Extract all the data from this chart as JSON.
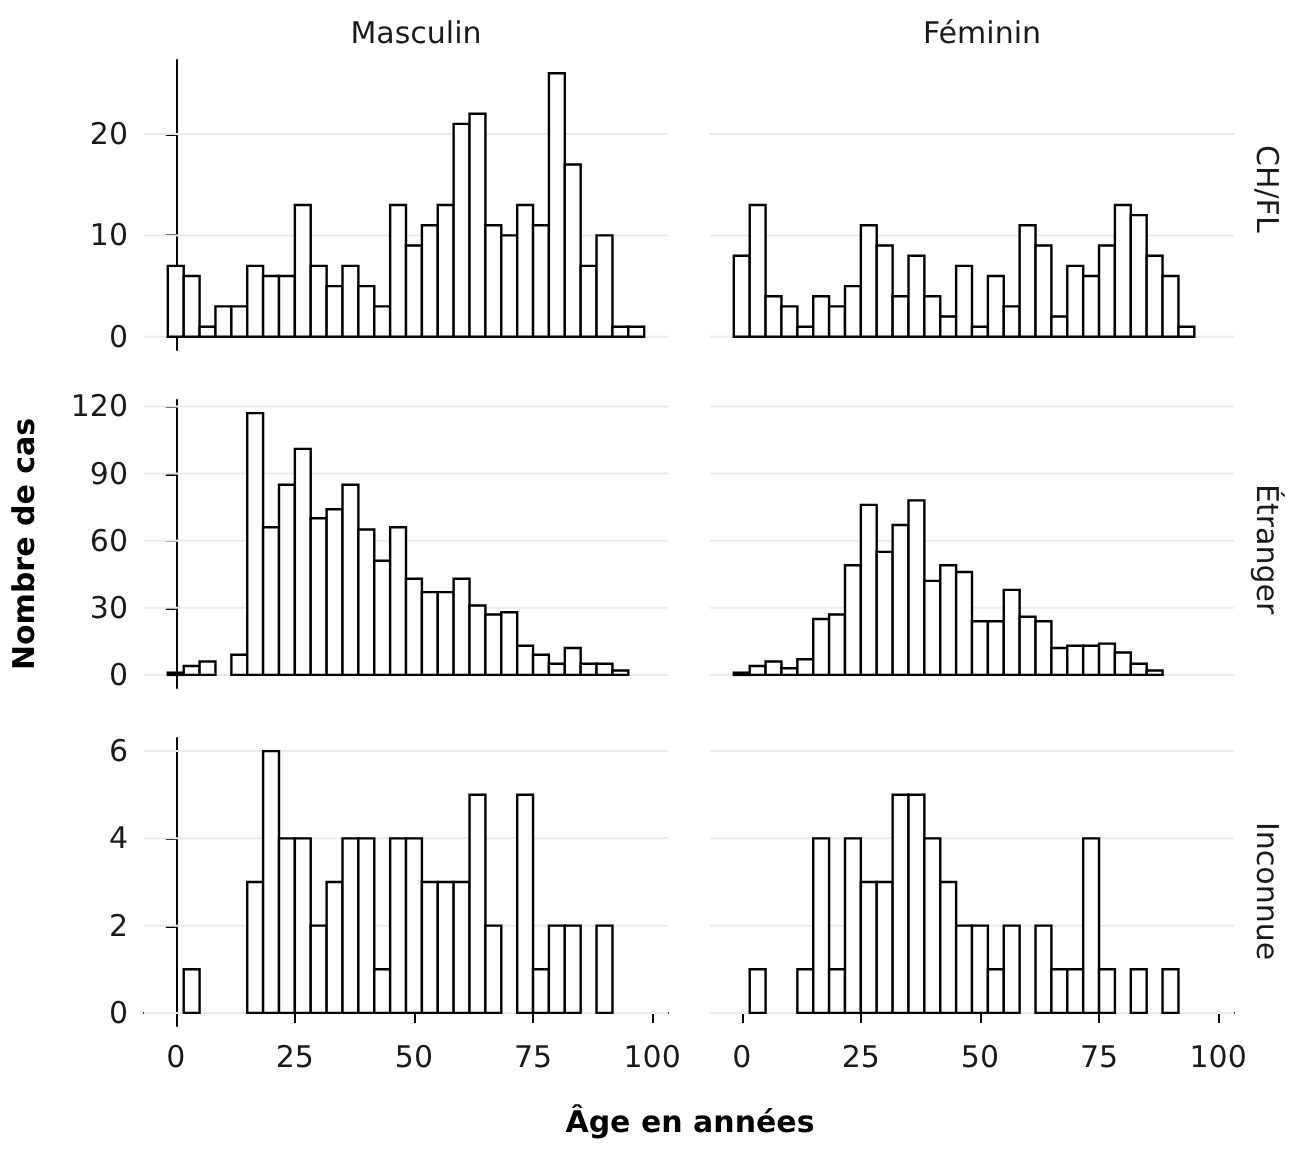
{
  "chart_data": [
    {
      "type": "histogram",
      "title": "Masculin",
      "bins": [
        -1.67,
        1.67,
        5,
        8.33,
        11.67,
        15,
        18.33,
        21.67,
        25,
        28.33,
        31.67,
        35,
        38.33,
        41.67,
        45,
        48.33,
        51.67,
        55,
        58.33,
        61.67,
        65,
        68.33,
        71.67,
        75,
        78.33,
        81.67,
        85,
        88.33,
        91.67,
        95,
        98.33
      ],
      "values": [
        7,
        6,
        1,
        3,
        3,
        7,
        6,
        6,
        13,
        7,
        5,
        7,
        5,
        3,
        13,
        9,
        11,
        13,
        21,
        22,
        11,
        10,
        13,
        11,
        26,
        17,
        7,
        10,
        1,
        1
      ],
      "color": "#ffffff",
      "xlim": [
        -6.67,
        103.33
      ],
      "xticks": [
        0,
        25,
        50,
        75,
        100
      ],
      "ylim": [
        -1.3,
        27.3
      ],
      "yticks": [
        0,
        10,
        20
      ],
      "grid": "y",
      "tick_labels": "y"
    },
    {
      "type": "histogram",
      "title": "Féminin",
      "annotations": [
        "CH/FL"
      ],
      "bins": [
        -1.67,
        1.67,
        5,
        8.33,
        11.67,
        15,
        18.33,
        21.67,
        25,
        28.33,
        31.67,
        35,
        38.33,
        41.67,
        45,
        48.33,
        51.67,
        55,
        58.33,
        61.67,
        65,
        68.33,
        71.67,
        75,
        78.33,
        81.67,
        85,
        88.33,
        91.67,
        95,
        98.33
      ],
      "values": [
        8,
        13,
        4,
        3,
        1,
        4,
        3,
        5,
        11,
        9,
        4,
        8,
        4,
        2,
        7,
        1,
        6,
        3,
        11,
        9,
        2,
        7,
        6,
        9,
        13,
        12,
        8,
        6,
        1,
        0
      ],
      "color": "#ffffff",
      "xlim": [
        -6.67,
        103.33
      ],
      "xticks": [
        0,
        25,
        50,
        75,
        100
      ],
      "yticks": [
        0,
        10,
        20
      ],
      "grid": "y",
      "tick_labels": false
    },
    {
      "type": "histogram",
      "ylabel": "Nombre de cas",
      "bins": [
        -1.67,
        1.67,
        5,
        8.33,
        11.67,
        15,
        18.33,
        21.67,
        25,
        28.33,
        31.67,
        35,
        38.33,
        41.67,
        45,
        48.33,
        51.67,
        55,
        58.33,
        61.67,
        65,
        68.33,
        71.67,
        75,
        78.33,
        81.67,
        85,
        88.33,
        91.67,
        95,
        98.33
      ],
      "values": [
        1,
        4,
        6,
        0,
        9,
        117,
        66,
        85,
        101,
        70,
        74,
        85,
        65,
        51,
        66,
        43,
        37,
        37,
        43,
        31,
        27,
        28,
        13,
        9,
        5,
        12,
        5,
        5,
        2,
        0
      ],
      "color": "#ffffff",
      "xlim": [
        -6.67,
        103.33
      ],
      "xticks": [
        0,
        25,
        50,
        75,
        100
      ],
      "ylim": [
        -5.85,
        122.85
      ],
      "yticks": [
        0,
        30,
        60,
        90,
        120
      ],
      "grid": "y",
      "tick_labels": "y"
    },
    {
      "type": "histogram",
      "annotations": [
        "Étranger"
      ],
      "bins": [
        -1.67,
        1.67,
        5,
        8.33,
        11.67,
        15,
        18.33,
        21.67,
        25,
        28.33,
        31.67,
        35,
        38.33,
        41.67,
        45,
        48.33,
        51.67,
        55,
        58.33,
        61.67,
        65,
        68.33,
        71.67,
        75,
        78.33,
        81.67,
        85,
        88.33,
        91.67,
        95,
        98.33
      ],
      "values": [
        1,
        4,
        6,
        3,
        7,
        25,
        27,
        49,
        76,
        55,
        67,
        78,
        42,
        49,
        46,
        24,
        24,
        38,
        26,
        24,
        12,
        13,
        13,
        14,
        10,
        5,
        2,
        0,
        0,
        0
      ],
      "color": "#ffffff",
      "xlim": [
        -6.67,
        103.33
      ],
      "xticks": [
        0,
        25,
        50,
        75,
        100
      ],
      "yticks": [
        0,
        30,
        60,
        90,
        120
      ],
      "grid": "y",
      "tick_labels": false
    },
    {
      "type": "histogram",
      "xlabel": "Âge en années",
      "bins": [
        -1.67,
        1.67,
        5,
        8.33,
        11.67,
        15,
        18.33,
        21.67,
        25,
        28.33,
        31.67,
        35,
        38.33,
        41.67,
        45,
        48.33,
        51.67,
        55,
        58.33,
        61.67,
        65,
        68.33,
        71.67,
        75,
        78.33,
        81.67,
        85,
        88.33,
        91.67,
        95,
        98.33
      ],
      "values": [
        0,
        1,
        0,
        0,
        0,
        3,
        6,
        4,
        4,
        2,
        3,
        4,
        4,
        1,
        4,
        4,
        3,
        3,
        3,
        5,
        2,
        0,
        5,
        1,
        2,
        2,
        0,
        2,
        0,
        0
      ],
      "color": "#ffffff",
      "xlim": [
        -6.67,
        103.33
      ],
      "xticks": [
        0,
        25,
        50,
        75,
        100
      ],
      "ylim": [
        -0.3,
        6.3
      ],
      "yticks": [
        0,
        2,
        4,
        6
      ],
      "grid": "y"
    },
    {
      "type": "histogram",
      "annotations": [
        "Inconnue"
      ],
      "bins": [
        -1.67,
        1.67,
        5,
        8.33,
        11.67,
        15,
        18.33,
        21.67,
        25,
        28.33,
        31.67,
        35,
        38.33,
        41.67,
        45,
        48.33,
        51.67,
        55,
        58.33,
        61.67,
        65,
        68.33,
        71.67,
        75,
        78.33,
        81.67,
        85,
        88.33,
        91.67,
        95,
        98.33
      ],
      "values": [
        0,
        1,
        0,
        0,
        1,
        4,
        1,
        4,
        3,
        3,
        5,
        5,
        4,
        3,
        2,
        2,
        1,
        2,
        0,
        2,
        1,
        1,
        4,
        1,
        0,
        1,
        0,
        1,
        0,
        0
      ],
      "color": "#ffffff",
      "xlim": [
        -6.67,
        103.33
      ],
      "xticks": [
        0,
        25,
        50,
        75,
        100
      ],
      "yticks": [
        0,
        2,
        4,
        6
      ],
      "grid": "y",
      "tick_labels": "x"
    }
  ]
}
